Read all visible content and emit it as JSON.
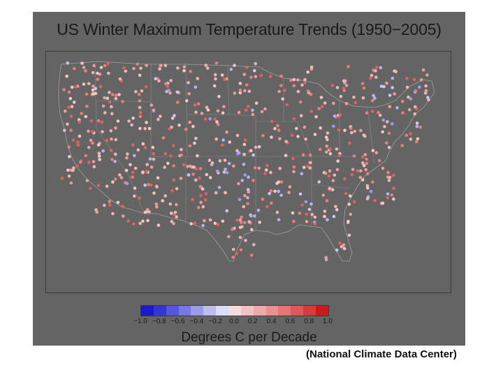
{
  "title": "US Winter Maximum Temperature Trends (1950−2005)",
  "colorbar": {
    "label": "Degrees C per Decade",
    "ticks": [
      "−1.0",
      "−0.8",
      "−0.6",
      "−0.4",
      "−0.2",
      "0.0",
      "0.2",
      "0.4",
      "0.6",
      "0.8",
      "1.0"
    ],
    "colors": [
      "#1a1acc",
      "#3535d4",
      "#5656dc",
      "#7878e2",
      "#9a9ae8",
      "#bcbcee",
      "#dcdcf4",
      "#f4dcdc",
      "#f2c2c2",
      "#eeaaaa",
      "#ea9090",
      "#e47676",
      "#dc5a5a",
      "#d43c3c",
      "#cc1a1a"
    ]
  },
  "caption": "(National Climate Data Center)",
  "colors": {
    "panel": "#646464",
    "warm": "#e88a8a",
    "cool": "#a9a9ee",
    "border": "#a0a0a0"
  }
}
